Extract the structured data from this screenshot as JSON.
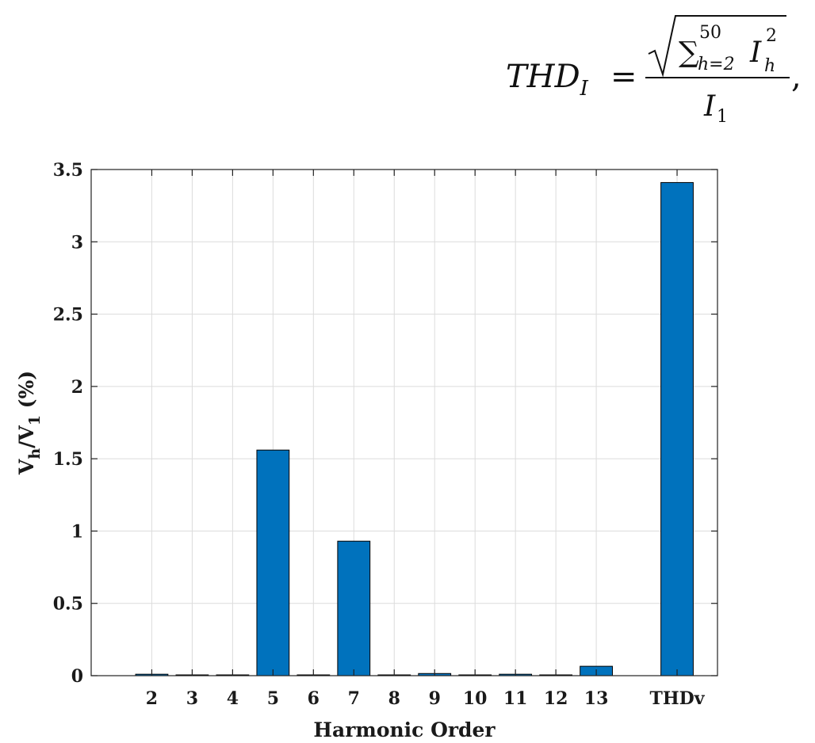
{
  "formula": {
    "lhs": "THD",
    "lhs_sub": "I",
    "equals": "=",
    "sum_symbol": "∑",
    "sum_upper": "50",
    "sum_lower": "h=2",
    "num_var": "I",
    "num_sub": "h",
    "num_sup": "2",
    "den_var": "I",
    "den_sub": "1",
    "trailing": ","
  },
  "chart_data": {
    "type": "bar",
    "categories": [
      "2",
      "3",
      "4",
      "5",
      "6",
      "7",
      "8",
      "9",
      "10",
      "11",
      "12",
      "13",
      "THDv"
    ],
    "x_positions": [
      2,
      3,
      4,
      5,
      6,
      7,
      8,
      9,
      10,
      11,
      12,
      13,
      15
    ],
    "values": [
      0.01,
      0.005,
      0.005,
      1.56,
      0.005,
      0.93,
      0.005,
      0.015,
      0.0,
      0.01,
      0.0,
      0.065,
      3.41
    ],
    "title": "",
    "xlabel": "Harmonic Order",
    "ylabel": {
      "v": "V",
      "h": "h",
      "slash": "/V",
      "one": "1",
      "pct": " (%)"
    },
    "xlim": [
      0.5,
      16
    ],
    "ylim": [
      0,
      3.5
    ],
    "yticks": [
      0,
      0.5,
      1,
      1.5,
      2,
      2.5,
      3,
      3.5
    ],
    "ytick_labels": [
      "0",
      "0.5",
      "1",
      "1.5",
      "2",
      "2.5",
      "3",
      "3.5"
    ],
    "grid": true,
    "bar_color": "#0072bd",
    "bar_edge_color": "#000000",
    "grid_color": "#dcdcdc"
  }
}
